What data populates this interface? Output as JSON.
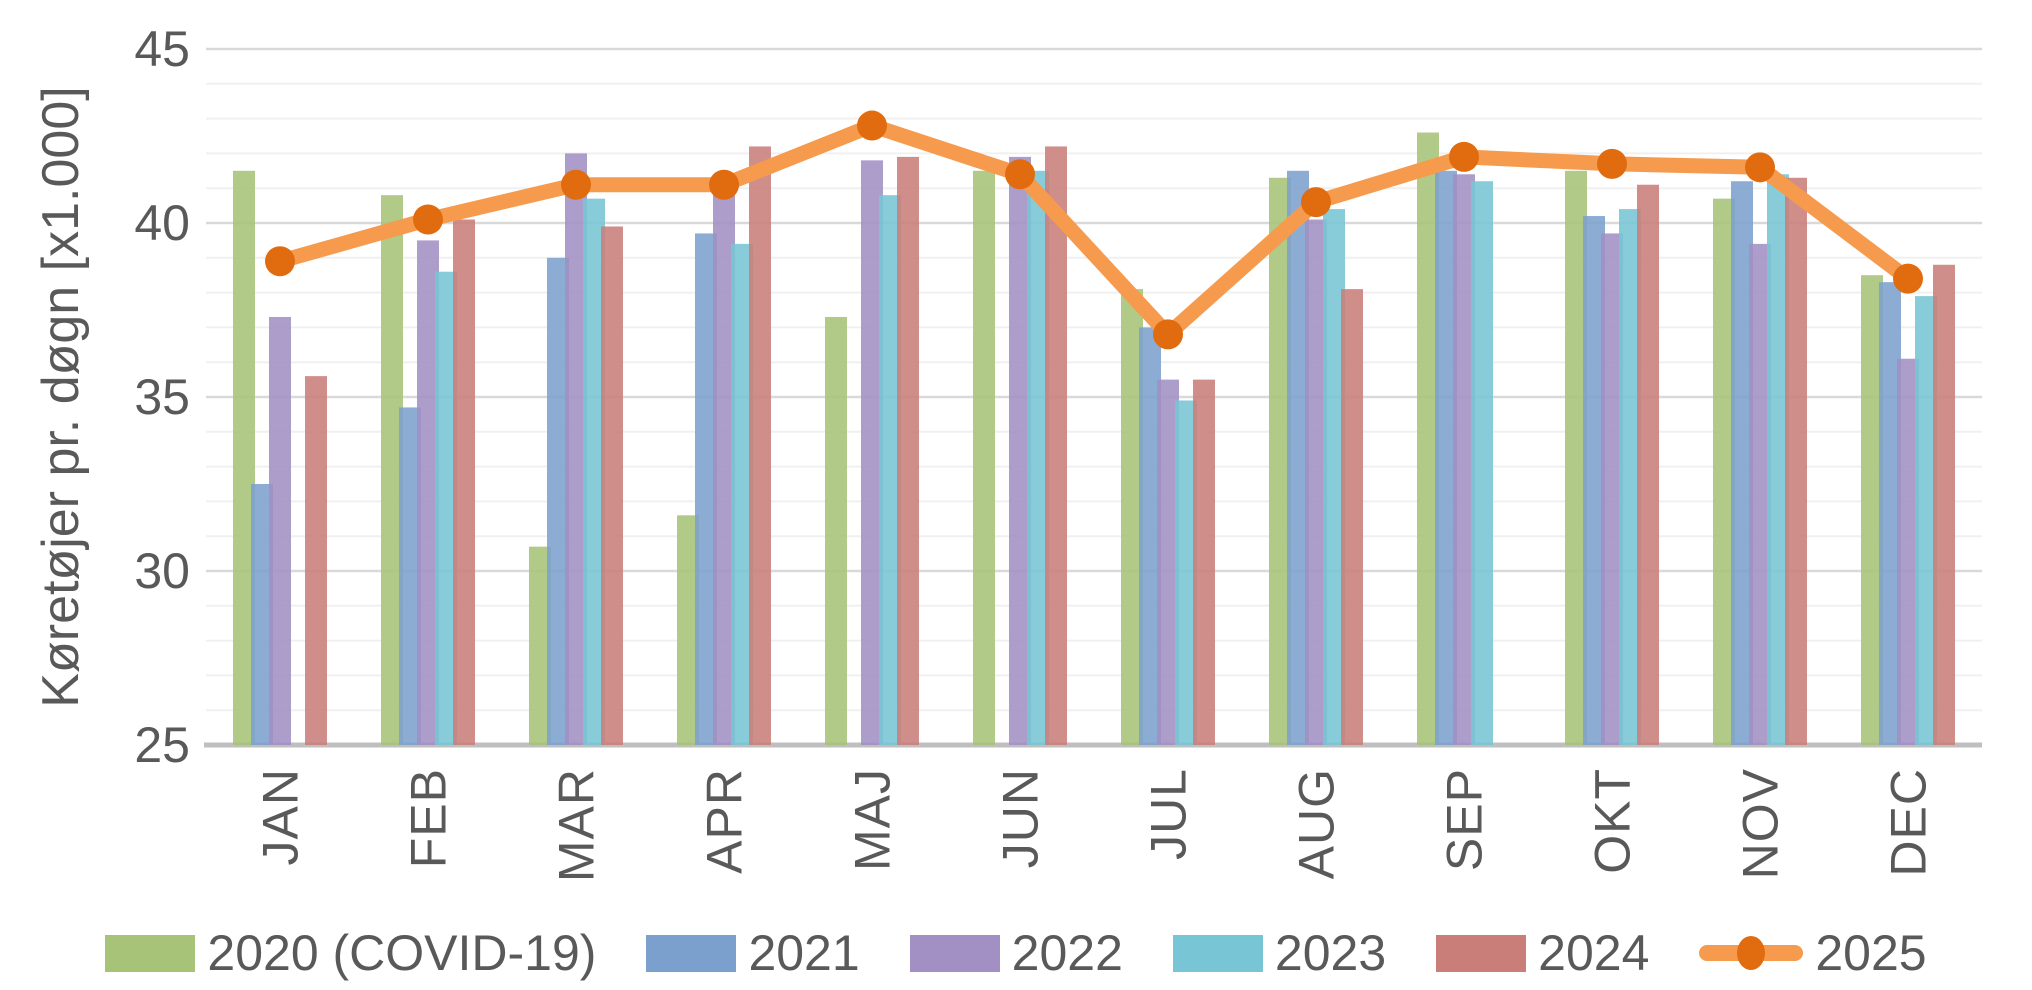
{
  "chart_data": {
    "type": "combo-bar-line",
    "title": "",
    "xlabel": "",
    "ylabel": "Køretøjer pr. døgn [x1.000]",
    "ylim": [
      25,
      45
    ],
    "y_ticks": [
      45,
      40,
      35,
      30,
      25
    ],
    "y_minor_gridline_step": 1,
    "grid": true,
    "legend_position": "bottom",
    "categories": [
      "JAN",
      "FEB",
      "MAR",
      "APR",
      "MAJ",
      "JUN",
      "JUL",
      "AUG",
      "SEP",
      "OKT",
      "NOV",
      "DEC"
    ],
    "series": [
      {
        "name": "2020 (COVID-19)",
        "type": "bar",
        "color": "#A6C377",
        "values": [
          41.5,
          40.8,
          30.7,
          31.6,
          37.3,
          41.5,
          38.1,
          41.3,
          42.6,
          41.5,
          40.7,
          38.5
        ]
      },
      {
        "name": "2021",
        "type": "bar",
        "color": "#7CA0CE",
        "values": [
          32.5,
          34.7,
          39.0,
          39.7,
          null,
          null,
          37.0,
          41.5,
          41.5,
          40.2,
          41.2,
          38.3
        ]
      },
      {
        "name": "2022",
        "type": "bar",
        "color": "#A290C4",
        "values": [
          37.3,
          39.5,
          42.0,
          40.8,
          41.8,
          41.9,
          35.5,
          40.1,
          41.4,
          39.7,
          39.4,
          36.1
        ]
      },
      {
        "name": "2023",
        "type": "bar",
        "color": "#77C5D5",
        "values": [
          null,
          38.6,
          40.7,
          39.4,
          40.8,
          41.5,
          34.9,
          40.4,
          41.2,
          40.4,
          41.4,
          37.9
        ]
      },
      {
        "name": "2024",
        "type": "bar",
        "color": "#CA7E7A",
        "values": [
          35.6,
          40.1,
          39.9,
          42.2,
          41.9,
          42.2,
          35.5,
          38.1,
          null,
          41.1,
          41.3,
          38.8
        ]
      },
      {
        "name": "2025",
        "type": "line",
        "color": "#F69A4E",
        "marker_color": "#E16C0F",
        "values": [
          38.9,
          40.1,
          41.1,
          41.1,
          42.8,
          41.4,
          36.8,
          40.6,
          41.9,
          41.7,
          41.6,
          38.4
        ]
      }
    ]
  },
  "styles": {
    "background": "#FFFFFF",
    "text_color": "#595959",
    "grid_major_color": "#D9D9D9",
    "grid_minor_color": "#F0F0F0",
    "axis_line_color": "#BFBFBF"
  }
}
